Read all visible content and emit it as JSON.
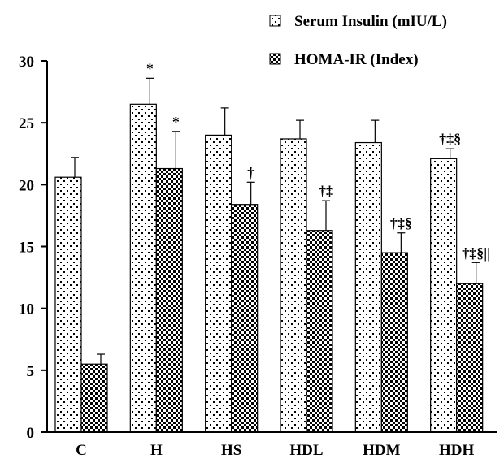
{
  "chart_data": {
    "type": "bar",
    "categories": [
      "C",
      "H",
      "HS",
      "HDL",
      "HDM",
      "HDH"
    ],
    "series": [
      {
        "name": "Serum Insulin (mIU/L)",
        "values": [
          20.6,
          26.5,
          24.0,
          23.7,
          23.4,
          22.1
        ],
        "errors": [
          1.6,
          2.1,
          2.2,
          1.5,
          1.8,
          0.8
        ],
        "annotations": [
          "",
          "*",
          "",
          "",
          "",
          "†‡§"
        ],
        "pattern": "dots"
      },
      {
        "name": "HOMA-IR (Index)",
        "values": [
          5.5,
          21.3,
          18.4,
          16.3,
          14.5,
          12.0
        ],
        "errors": [
          0.8,
          3.0,
          1.8,
          2.4,
          1.6,
          1.7
        ],
        "annotations": [
          "",
          "*",
          "†",
          "†‡",
          "†‡§",
          "†‡§||"
        ],
        "pattern": "checker"
      }
    ],
    "ylim": [
      0,
      30
    ],
    "yticks": [
      "0",
      "5",
      "10",
      "15",
      "20",
      "25",
      "30"
    ],
    "legend_position": "top-right",
    "grid": false
  }
}
